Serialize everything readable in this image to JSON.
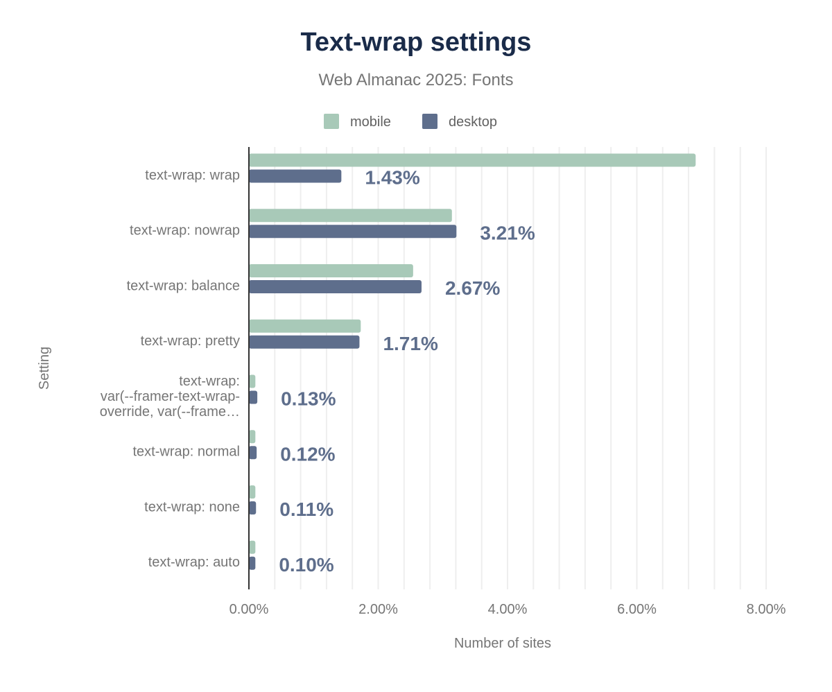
{
  "chart_data": {
    "type": "bar",
    "orientation": "horizontal",
    "title": "Text-wrap settings",
    "subtitle": "Web Almanac 2025: Fonts",
    "xlabel": "Number of sites",
    "ylabel": "Setting",
    "xlim": [
      0,
      8
    ],
    "xticks": [
      "0.00%",
      "2.00%",
      "4.00%",
      "6.00%",
      "8.00%"
    ],
    "grid": true,
    "legend_position": "top",
    "categories": [
      "text-wrap: wrap",
      "text-wrap: nowrap",
      "text-wrap: balance",
      "text-wrap: pretty",
      "text-wrap: var(--framer-text-wrap-override, var(--frame…",
      "text-wrap: normal",
      "text-wrap: none",
      "text-wrap: auto"
    ],
    "series": [
      {
        "name": "mobile",
        "color": "#a8c9b8",
        "values": [
          6.91,
          3.14,
          2.54,
          1.73,
          0.1,
          0.1,
          0.1,
          0.1
        ]
      },
      {
        "name": "desktop",
        "color": "#5e6e8c",
        "values": [
          1.43,
          3.21,
          2.67,
          1.71,
          0.13,
          0.12,
          0.11,
          0.1
        ],
        "data_labels": [
          "1.43%",
          "3.21%",
          "2.67%",
          "1.71%",
          "0.13%",
          "0.12%",
          "0.11%",
          "0.10%"
        ]
      }
    ]
  }
}
